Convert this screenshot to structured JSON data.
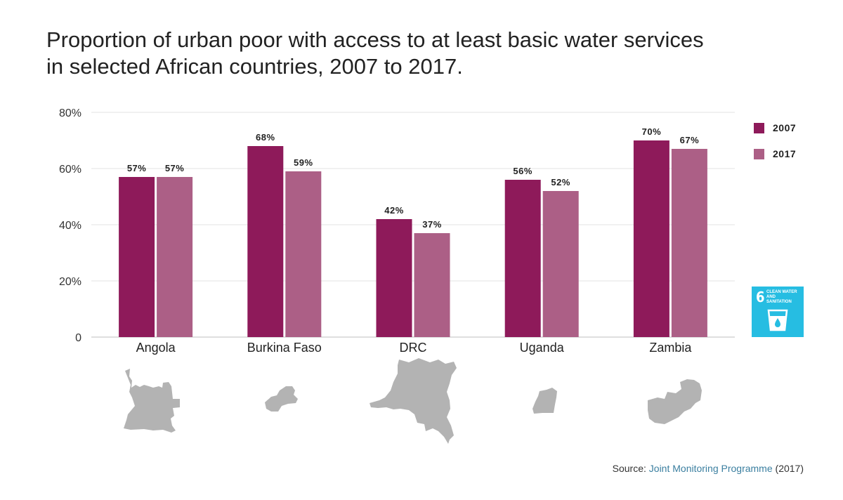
{
  "title": {
    "line1": "Proportion of urban poor with access to at least basic water services",
    "line2": "in selected African countries, 2007 to 2017."
  },
  "colors": {
    "series_2007": "#8e1a5a",
    "series_2017": "#ac5f86",
    "grid": "#e3e3e3",
    "axis": "#bfbfbf",
    "map": "#b3b3b3",
    "sdg_blue": "#26bde2"
  },
  "chart_data": {
    "type": "bar",
    "title": "Proportion of urban poor with access to at least basic water services in selected African countries, 2007 to 2017.",
    "categories": [
      "Angola",
      "Burkina Faso",
      "DRC",
      "Uganda",
      "Zambia"
    ],
    "series": [
      {
        "name": "2007",
        "values": [
          57,
          68,
          42,
          56,
          70
        ],
        "labels": [
          "57%",
          "68%",
          "42%",
          "56%",
          "70%"
        ]
      },
      {
        "name": "2017",
        "values": [
          57,
          59,
          37,
          52,
          67
        ],
        "labels": [
          "57%",
          "59%",
          "37%",
          "52%",
          "67%"
        ]
      }
    ],
    "yticks": [
      0,
      20,
      40,
      60,
      80
    ],
    "ytick_labels": [
      "0",
      "20%",
      "40%",
      "60%",
      "80%"
    ],
    "ylim": [
      0,
      80
    ],
    "xlabel": "",
    "ylabel": "",
    "grid": true,
    "legend_position": "right"
  },
  "legend": {
    "items": [
      {
        "label": "2007"
      },
      {
        "label": "2017"
      }
    ]
  },
  "sdg_badge": {
    "number": "6",
    "text_line1": "CLEAN WATER",
    "text_line2": "AND SANITATION"
  },
  "source": {
    "prefix": "Source: ",
    "link": "Joint Monitoring Programme",
    "suffix": " (2017)"
  }
}
